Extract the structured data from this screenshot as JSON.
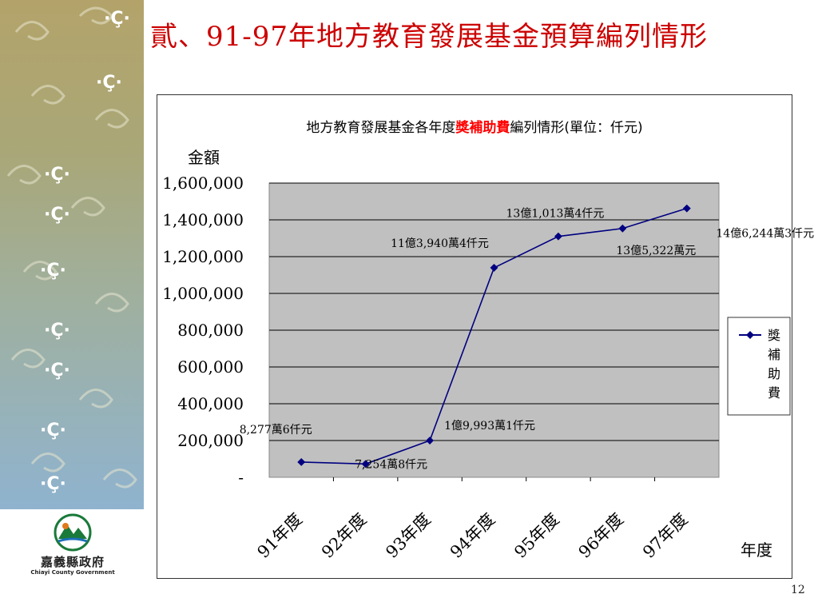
{
  "slide": {
    "title": "貳、91-97年地方教育發展基金預算編列情形",
    "page_number": "12",
    "org_name": "嘉義縣政府",
    "org_name_en": "Chiayi County Government"
  },
  "colors": {
    "title": "#cc0000",
    "series_line": "#000080",
    "plot_bg": "#c0c0c0",
    "highlight_text": "#ff0000"
  },
  "chart_data": {
    "type": "line",
    "title_prefix": "地方教育發展基金各年度",
    "title_highlight": "獎補助費",
    "title_suffix": "編列情形(單位：仟元)",
    "ylabel": "金額",
    "xlabel": "年度",
    "categories": [
      "91年度",
      "92年度",
      "93年度",
      "94年度",
      "95年度",
      "96年度",
      "97年度"
    ],
    "ylim": [
      0,
      1600000
    ],
    "yticks": [
      0,
      200000,
      400000,
      600000,
      800000,
      1000000,
      1200000,
      1400000,
      1600000
    ],
    "ytick_labels": [
      "-",
      "200,000",
      "400,000",
      "600,000",
      "800,000",
      "1,000,000",
      "1,200,000",
      "1,400,000",
      "1,600,000"
    ],
    "series": [
      {
        "name": "獎補助費",
        "values": [
          82776,
          72548,
          199931,
          1139404,
          1310134,
          1353220,
          1462443
        ],
        "data_labels": [
          "8,277萬6仟元",
          "7,254萬8仟元",
          "1億9,993萬1仟元",
          "11億3,940萬4仟元",
          "13億1,013萬4仟元",
          "13億5,322萬元",
          "14億6,244萬3仟元"
        ]
      }
    ],
    "grid": true,
    "legend_position": "right"
  }
}
